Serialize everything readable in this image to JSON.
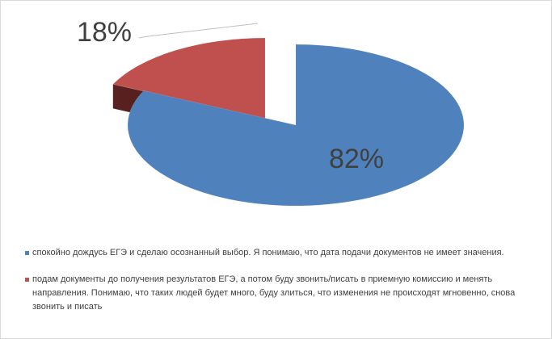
{
  "chart_data": {
    "type": "pie",
    "three_d": true,
    "exploded": true,
    "series": [
      {
        "name": "спокойно дождусь ЕГЭ и сделаю осознанный выбор. Я понимаю, что дата подачи документов не имеет значения.",
        "value": 82,
        "label": "82%",
        "color": "#4f81bd"
      },
      {
        "name": "подам документы до получения результатов ЕГЭ, а потом буду звонить/писать в приемную комиссию и менять направления. Понимаю, что таких людей будет много, буду злиться, что изменения не происходят мгновенно, снова звонить и писать",
        "value": 18,
        "label": "18%",
        "color": "#c0504d"
      }
    ],
    "legend_placement": "bottom"
  }
}
